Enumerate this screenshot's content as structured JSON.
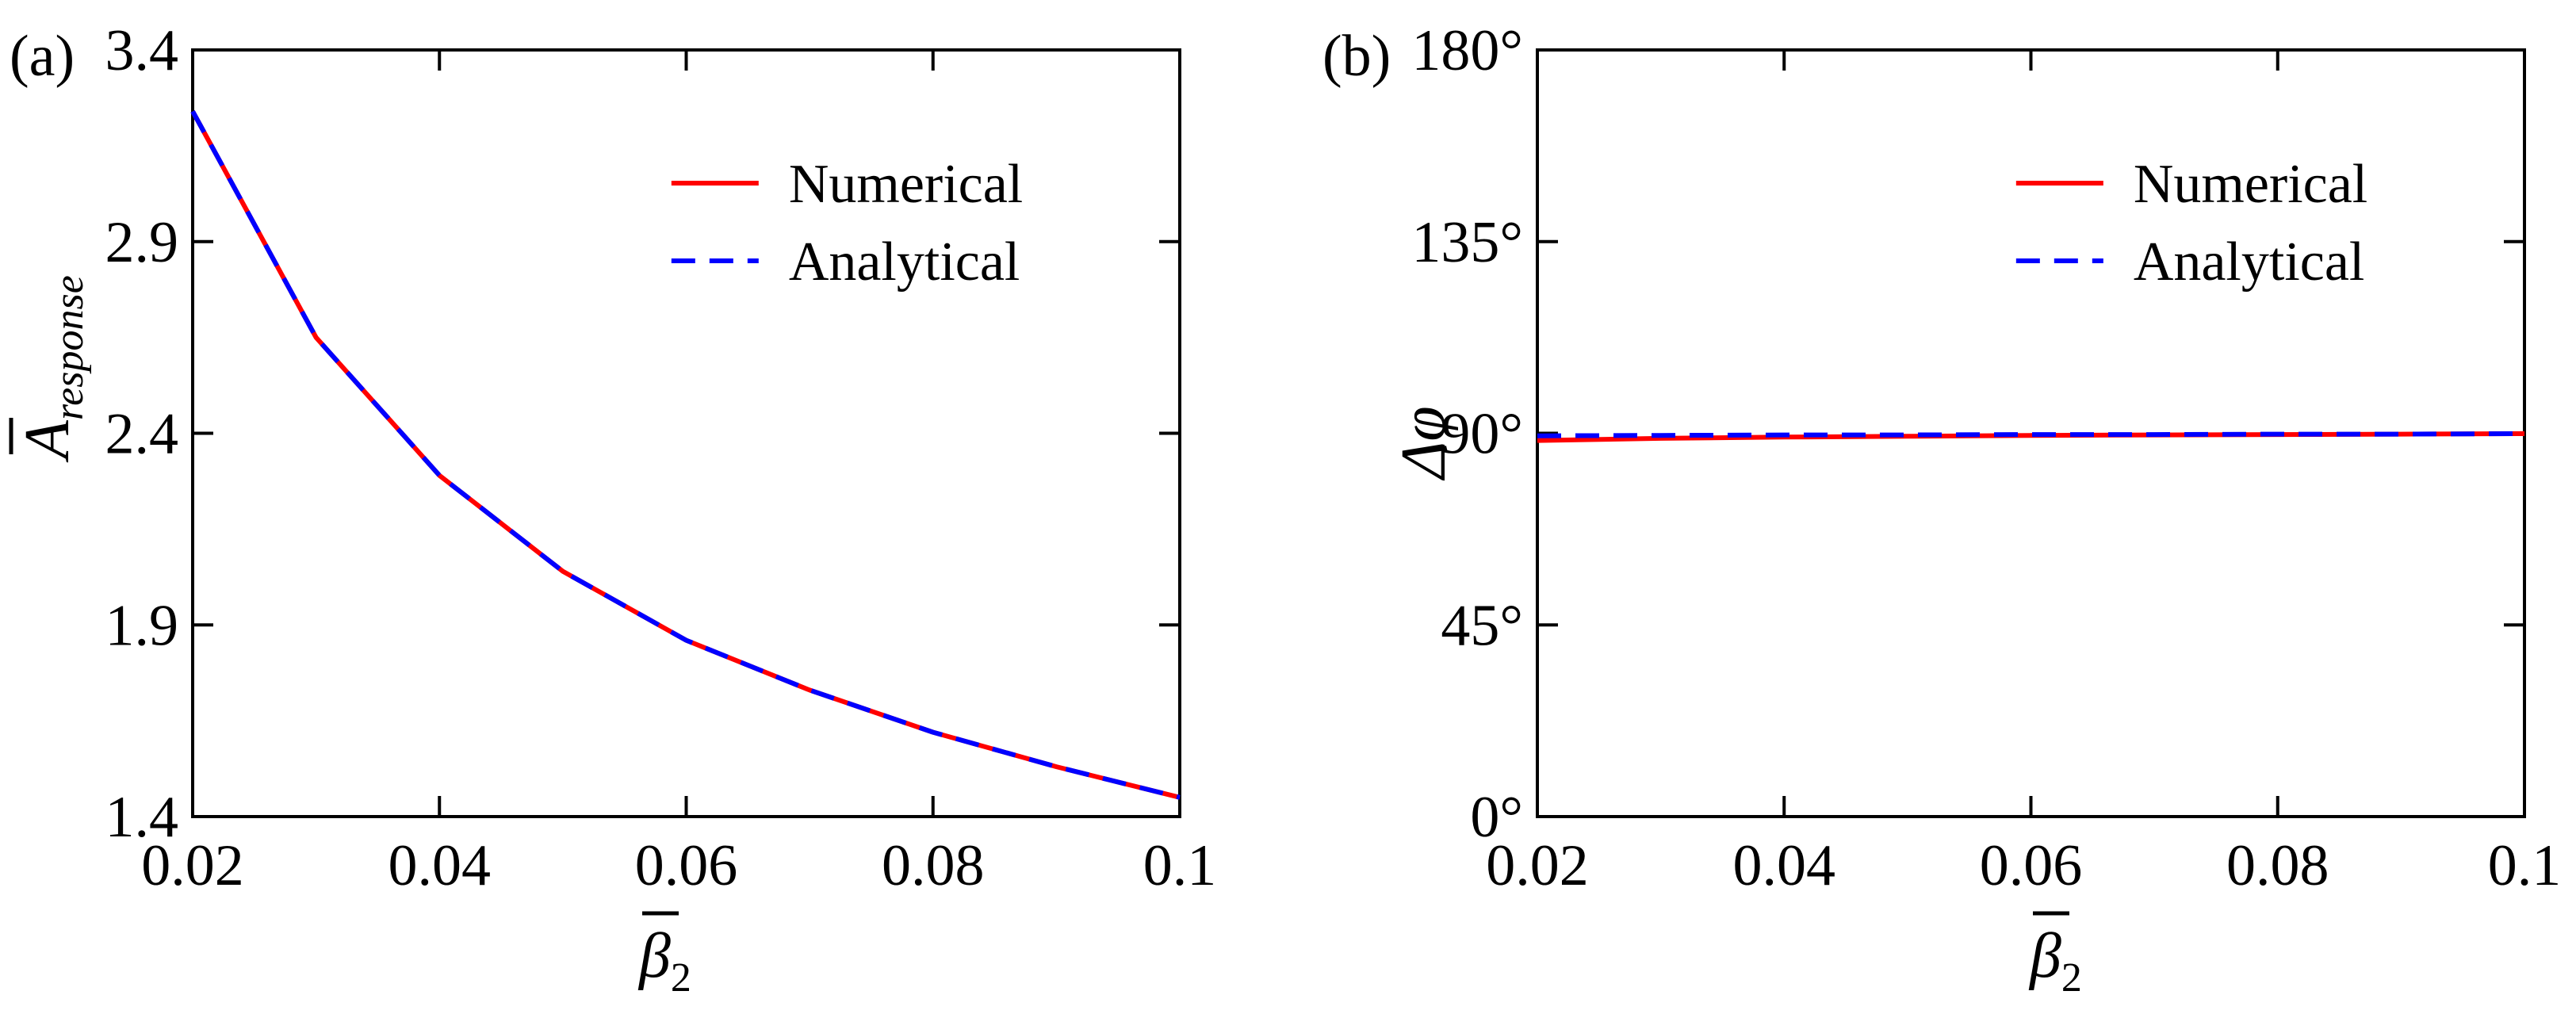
{
  "chart_data": [
    {
      "type": "line",
      "panel_tag": "(a)",
      "x": [
        0.02,
        0.03,
        0.04,
        0.05,
        0.06,
        0.07,
        0.08,
        0.09,
        0.1
      ],
      "series": [
        {
          "name": "Numerical",
          "color": "#ff0000",
          "style": "solid",
          "values": [
            3.24,
            2.65,
            2.29,
            2.04,
            1.86,
            1.73,
            1.62,
            1.53,
            1.45
          ]
        },
        {
          "name": "Analytical",
          "color": "#0000ff",
          "style": "dashed",
          "values": [
            3.24,
            2.65,
            2.29,
            2.04,
            1.86,
            1.73,
            1.62,
            1.53,
            1.45
          ]
        }
      ],
      "xlabel": {
        "symbol": "β",
        "subscript": "2"
      },
      "ylabel": {
        "symbol": "A",
        "subscript": "response"
      },
      "xlim": [
        0.02,
        0.1
      ],
      "ylim": [
        1.4,
        3.4
      ],
      "xticks": [
        0.02,
        0.04,
        0.06,
        0.08,
        0.1
      ],
      "xtick_labels": [
        "0.02",
        "0.04",
        "0.06",
        "0.08",
        "0.1"
      ],
      "yticks": [
        1.4,
        1.9,
        2.4,
        2.9,
        3.4
      ],
      "ytick_labels": [
        "1.4",
        "1.9",
        "2.4",
        "2.9",
        "3.4"
      ],
      "legend_position": "top-right",
      "grid": false
    },
    {
      "type": "line",
      "panel_tag": "(b)",
      "x": [
        0.02,
        0.03,
        0.04,
        0.05,
        0.06,
        0.07,
        0.08,
        0.09,
        0.1
      ],
      "series": [
        {
          "name": "Numerical",
          "color": "#ff0000",
          "style": "solid",
          "values": [
            88.3,
            88.8,
            89.1,
            89.3,
            89.5,
            89.6,
            89.7,
            89.8,
            89.9
          ]
        },
        {
          "name": "Analytical",
          "color": "#0000ff",
          "style": "dashed",
          "values": [
            89.4,
            89.5,
            89.6,
            89.6,
            89.7,
            89.7,
            89.8,
            89.8,
            89.9
          ]
        }
      ],
      "xlabel": {
        "symbol": "β",
        "subscript": "2"
      },
      "ylabel": {
        "symbol": "Δφ"
      },
      "xlim": [
        0.02,
        0.1
      ],
      "ylim": [
        0,
        180
      ],
      "xticks": [
        0.02,
        0.04,
        0.06,
        0.08,
        0.1
      ],
      "xtick_labels": [
        "0.02",
        "0.04",
        "0.06",
        "0.08",
        "0.1"
      ],
      "yticks": [
        0,
        45,
        90,
        135,
        180
      ],
      "ytick_labels": [
        "0°",
        "45°",
        "90°",
        "135°",
        "180°"
      ],
      "legend_position": "top-right",
      "grid": false
    }
  ]
}
